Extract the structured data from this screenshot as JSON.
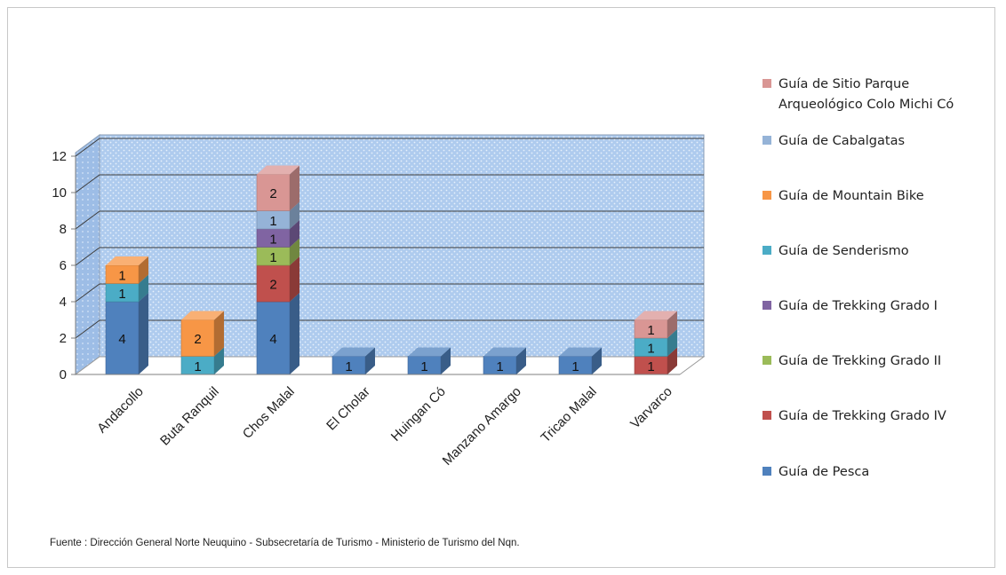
{
  "chart_data": {
    "type": "bar",
    "stacked": true,
    "three_d": true,
    "categories": [
      "Andacollo",
      "Buta Ranquil",
      "Chos Malal",
      "El Cholar",
      "Huingan Có",
      "Manzano Amargo",
      "Tricao Malal",
      "Varvarco"
    ],
    "ylim": [
      0,
      12
    ],
    "yticks": [
      "0",
      "2",
      "4",
      "6",
      "8",
      "10",
      "12"
    ],
    "grid": true,
    "legend_position": "right",
    "series": [
      {
        "name": "Guía de Pesca",
        "color": "#4F81BD",
        "values": [
          4,
          0,
          4,
          1,
          1,
          1,
          1,
          0
        ]
      },
      {
        "name": "Guía de Trekking Grado IV",
        "color": "#C0504D",
        "values": [
          0,
          0,
          2,
          0,
          0,
          0,
          0,
          1
        ]
      },
      {
        "name": "Guía de Trekking Grado II",
        "color": "#9BBB59",
        "values": [
          0,
          0,
          1,
          0,
          0,
          0,
          0,
          0
        ]
      },
      {
        "name": "Guía de Trekking Grado I",
        "color": "#8064A2",
        "values": [
          0,
          0,
          1,
          0,
          0,
          0,
          0,
          0
        ]
      },
      {
        "name": "Guía de Senderismo",
        "color": "#4BACC6",
        "values": [
          1,
          1,
          0,
          0,
          0,
          0,
          0,
          1
        ]
      },
      {
        "name": "Guía de Mountain Bike",
        "color": "#F79646",
        "values": [
          1,
          2,
          0,
          0,
          0,
          0,
          0,
          0
        ]
      },
      {
        "name": "Guía de Cabalgatas",
        "color": "#95B3D7",
        "values": [
          0,
          0,
          1,
          0,
          0,
          0,
          0,
          0
        ]
      },
      {
        "name": "Guía de Sitio Parque Arqueológico Colo Michi Có",
        "color": "#D99694",
        "values": [
          0,
          0,
          2,
          0,
          0,
          0,
          0,
          1
        ]
      }
    ],
    "legend_order": [
      7,
      6,
      5,
      4,
      3,
      2,
      1,
      0
    ]
  },
  "source_text": "Fuente : Dirección General Norte Neuquino - Subsecretaría de Turismo - Ministerio de Turismo del Nqn."
}
